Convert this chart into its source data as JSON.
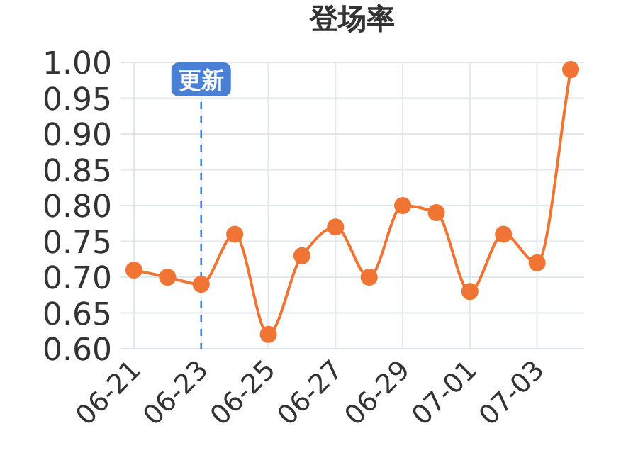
{
  "chart_data": {
    "type": "line",
    "title": "登场率",
    "categories": [
      "06-21",
      null,
      "06-23",
      null,
      "06-25",
      null,
      "06-27",
      null,
      "06-29",
      null,
      "07-01",
      null,
      "07-03",
      null
    ],
    "series": [
      {
        "color": "#f07535",
        "values": [
          0.71,
          0.7,
          0.69,
          0.76,
          0.62,
          0.73,
          0.77,
          0.7,
          0.8,
          0.79,
          0.68,
          0.76,
          0.72,
          0.99
        ]
      }
    ],
    "ylim": [
      0.6,
      1.0
    ],
    "yticks": [
      {
        "value": 0.6,
        "label": "0.60"
      },
      {
        "value": 0.65,
        "label": "0.65"
      },
      {
        "value": 0.7,
        "label": "0.70"
      },
      {
        "value": 0.75,
        "label": "0.75"
      },
      {
        "value": 0.8,
        "label": "0.80"
      },
      {
        "value": 0.85,
        "label": "0.85"
      },
      {
        "value": 0.9,
        "label": "0.90"
      },
      {
        "value": 0.95,
        "label": "0.95"
      },
      {
        "value": 1.0,
        "label": "1.00"
      }
    ],
    "grid": true,
    "marker": "circle",
    "line_style": "solid",
    "ref_lines": [
      {
        "axis": "x",
        "value": "06-23",
        "label": "更新",
        "color": "#4a7fd6",
        "line_style": "dashed"
      }
    ]
  }
}
